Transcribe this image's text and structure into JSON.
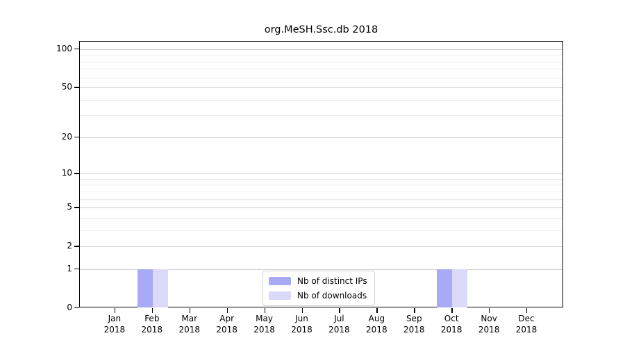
{
  "chart_data": {
    "type": "bar",
    "title": "org.MeSH.Ssc.db 2018",
    "categories": [
      "Jan",
      "Feb",
      "Mar",
      "Apr",
      "May",
      "Jun",
      "Jul",
      "Aug",
      "Sep",
      "Oct",
      "Nov",
      "Dec"
    ],
    "year_label": "2018",
    "series": [
      {
        "name": "Nb of distinct IPs",
        "color": "#a9a9f5",
        "values": [
          0,
          1,
          0,
          0,
          0,
          0,
          0,
          0,
          0,
          1,
          0,
          0
        ]
      },
      {
        "name": "Nb of downloads",
        "color": "#dadaf8",
        "values": [
          0,
          1,
          0,
          0,
          0,
          0,
          0,
          0,
          0,
          1,
          0,
          0
        ]
      }
    ],
    "y_scale": "log10(1+x)",
    "y_major_ticks": [
      0,
      1,
      2,
      5,
      10,
      20,
      50,
      100
    ],
    "y_minor_gridlines": [
      3,
      4,
      6,
      7,
      8,
      9,
      30,
      40,
      60,
      70,
      80,
      90
    ],
    "ylim": [
      0,
      105
    ],
    "grid": "horizontal",
    "legend_position": "bottom-center",
    "colors": {
      "axis": "#000000",
      "grid_major": "#cccccc",
      "grid_minor": "#ececec",
      "background": "#ffffff"
    }
  }
}
